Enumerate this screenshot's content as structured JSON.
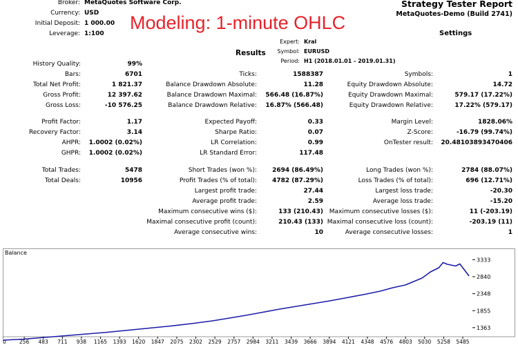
{
  "overlay_text": "Modeling: 1-minute OHLC",
  "header": {
    "rows": [
      {
        "label": "Broker:",
        "value": "MetaQuotes Software Corp."
      },
      {
        "label": "Currency:",
        "value": "USD"
      },
      {
        "label": "Initial Deposit:",
        "value": "1 000.00"
      },
      {
        "label": "Leverage:",
        "value": "1:100"
      }
    ],
    "title": "Strategy Tester Report",
    "subtitle": "MetaQuotes-Demo (Build 2741)",
    "settings": "Settings",
    "results": "Results",
    "details": [
      {
        "label": "Expert:",
        "value": "Kral"
      },
      {
        "label": "Symbol:",
        "value": "EURUSD"
      },
      {
        "label": "Period:",
        "value": "H1 (2018.01.01 - 2019.01.31)"
      }
    ]
  },
  "stats": {
    "block1": {
      "col1": [
        {
          "label": "History Quality:",
          "value": "99%"
        },
        {
          "label": "Bars:",
          "value": "6701"
        },
        {
          "label": "Total Net Profit:",
          "value": "1 821.37"
        },
        {
          "label": "Gross Profit:",
          "value": "12 397.62"
        },
        {
          "label": "Gross Loss:",
          "value": "-10 576.25"
        }
      ],
      "col2": [
        {
          "label": "Ticks:",
          "value": "1588387"
        },
        {
          "label": "Balance Drawdown Absolute:",
          "value": "11.28"
        },
        {
          "label": "Balance Drawdown Maximal:",
          "value": "566.48 (16.87%)"
        },
        {
          "label": "Balance Drawdown Relative:",
          "value": "16.87% (566.48)"
        }
      ],
      "col3": [
        {
          "label": "Symbols:",
          "value": "1"
        },
        {
          "label": "Equity Drawdown Absolute:",
          "value": "14.72"
        },
        {
          "label": "Equity Drawdown Maximal:",
          "value": "579.17 (17.22%)"
        },
        {
          "label": "Equity Drawdown Relative:",
          "value": "17.22% (579.17)"
        }
      ]
    },
    "block2": {
      "col1": [
        {
          "label": "Profit Factor:",
          "value": "1.17"
        },
        {
          "label": "Recovery Factor:",
          "value": "3.14"
        },
        {
          "label": "AHPR:",
          "value": "1.0002 (0.02%)"
        },
        {
          "label": "GHPR:",
          "value": "1.0002 (0.02%)"
        }
      ],
      "col2": [
        {
          "label": "Expected Payoff:",
          "value": "0.33"
        },
        {
          "label": "Sharpe Ratio:",
          "value": "0.07"
        },
        {
          "label": "LR Correlation:",
          "value": "0.99"
        },
        {
          "label": "LR Standard Error:",
          "value": "117.48"
        }
      ],
      "col3": [
        {
          "label": "Margin Level:",
          "value": "1828.06%"
        },
        {
          "label": "Z-Score:",
          "value": "-16.79 (99.74%)"
        },
        {
          "label": "OnTester result:",
          "value": "20.48103893470406"
        }
      ]
    },
    "block3": {
      "col1": [
        {
          "label": "Total Trades:",
          "value": "5478"
        },
        {
          "label": "Total Deals:",
          "value": "10956"
        }
      ],
      "col2": [
        {
          "label": "Short Trades (won %):",
          "value": "2694 (86.49%)"
        },
        {
          "label": "Profit Trades (% of total):",
          "value": "4782 (87.29%)"
        },
        {
          "label": "Largest profit trade:",
          "value": "27.44"
        },
        {
          "label": "Average profit trade:",
          "value": "2.59"
        },
        {
          "label": "Maximum consecutive wins ($):",
          "value": "133 (210.43)"
        },
        {
          "label": "Maximal consecutive profit (count):",
          "value": "210.43 (133)"
        },
        {
          "label": "Average consecutive wins:",
          "value": "10"
        }
      ],
      "col3": [
        {
          "label": "Long Trades (won %):",
          "value": "2784 (88.07%)"
        },
        {
          "label": "Loss Trades (% of total):",
          "value": "696 (12.71%)"
        },
        {
          "label": "Largest loss trade:",
          "value": "-20.30"
        },
        {
          "label": "Average loss trade:",
          "value": "-15.20"
        },
        {
          "label": "Maximum consecutive losses ($):",
          "value": "11 (-203.19)"
        },
        {
          "label": "Maximal consecutive loss (count):",
          "value": "-203.19 (11)"
        },
        {
          "label": "Average consecutive losses:",
          "value": "1"
        }
      ]
    }
  },
  "chart_data": {
    "type": "line",
    "title": "Balance",
    "xlabel": "",
    "ylabel": "",
    "xlim": [
      0,
      5600
    ],
    "ylim": [
      1100,
      3500
    ],
    "x_ticks": [
      0,
      256,
      483,
      711,
      938,
      1165,
      1393,
      1620,
      1847,
      2075,
      2302,
      2529,
      2757,
      2984,
      3211,
      3439,
      3666,
      3894,
      4121,
      4348,
      4576,
      4803,
      5030,
      5258,
      5485
    ],
    "y_ticks": [
      1363,
      1855,
      2348,
      2840,
      3333
    ],
    "line_color": "#1a1aa6",
    "series": [
      {
        "x": [
          0,
          250,
          500,
          750,
          1000,
          1250,
          1500,
          1750,
          2000,
          2250,
          2500,
          2700,
          2900,
          3100,
          3300,
          3500,
          3700,
          3900,
          4100,
          4300,
          4500,
          4650,
          4800,
          4900,
          5000,
          5100,
          5200,
          5250,
          5300,
          5400,
          5450,
          5500,
          5560
        ],
        "values": [
          1000,
          1030,
          1080,
          1130,
          1180,
          1230,
          1290,
          1350,
          1410,
          1480,
          1560,
          1640,
          1720,
          1810,
          1900,
          1980,
          2060,
          2140,
          2230,
          2320,
          2420,
          2520,
          2600,
          2700,
          2800,
          2980,
          3100,
          3250,
          3200,
          3150,
          3210,
          3050,
          2860
        ]
      }
    ]
  }
}
